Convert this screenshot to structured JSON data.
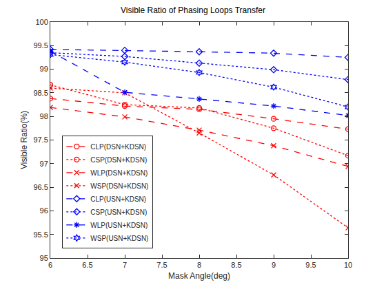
{
  "chart_data": {
    "type": "line",
    "title": "Visible Ratio of Phasing Loops Transfer",
    "x_label": "Mask Angle(deg)",
    "y_label": "Visible Ratio(%)",
    "x": [
      6,
      7,
      8,
      9,
      10
    ],
    "xlim": [
      6,
      10
    ],
    "xticks": [
      6,
      6.5,
      7,
      7.5,
      8,
      8.5,
      9,
      9.5,
      10
    ],
    "ylim": [
      95,
      100
    ],
    "yticks": [
      95,
      95.5,
      96,
      96.5,
      97,
      97.5,
      98,
      98.5,
      99,
      99.5,
      100
    ],
    "grid": false,
    "legend": "lower left",
    "series": [
      {
        "name": "CLP(DSN+KDSN)",
        "color": "#ff0000",
        "marker": "circle",
        "line_style": "dashed",
        "values": [
          98.38,
          98.22,
          98.15,
          97.95,
          97.73
        ]
      },
      {
        "name": "CSP(DSN+KDSN)",
        "color": "#ff0000",
        "marker": "circle",
        "line_style": "dotted",
        "values": [
          98.67,
          98.25,
          98.18,
          97.75,
          97.17
        ]
      },
      {
        "name": "WLP(DSN+KDSN)",
        "color": "#ff0000",
        "marker": "x",
        "line_style": "dashed",
        "values": [
          98.19,
          97.99,
          97.71,
          97.38,
          96.94
        ]
      },
      {
        "name": "WSP(DSN+KDSN)",
        "color": "#ff0000",
        "marker": "x",
        "line_style": "dotted",
        "values": [
          98.6,
          98.5,
          97.65,
          96.76,
          95.64
        ]
      },
      {
        "name": "CLP(USN+KDSN)",
        "color": "#0000ff",
        "marker": "diamond",
        "line_style": "dashed",
        "values": [
          99.42,
          99.4,
          99.37,
          99.34,
          99.25
        ]
      },
      {
        "name": "CSP(USN+KDSN)",
        "color": "#0000ff",
        "marker": "diamond",
        "line_style": "dotted",
        "values": [
          99.35,
          99.27,
          99.13,
          98.99,
          98.78
        ]
      },
      {
        "name": "WLP(USN+KDSN)",
        "color": "#0000ff",
        "marker": "asterisk",
        "line_style": "dashed",
        "values": [
          99.38,
          98.51,
          98.37,
          98.22,
          98.02
        ]
      },
      {
        "name": "WSP(USN+KDSN)",
        "color": "#0000ff",
        "marker": "hexagram",
        "line_style": "dotted",
        "values": [
          99.31,
          99.15,
          98.93,
          98.62,
          98.2
        ]
      }
    ]
  }
}
